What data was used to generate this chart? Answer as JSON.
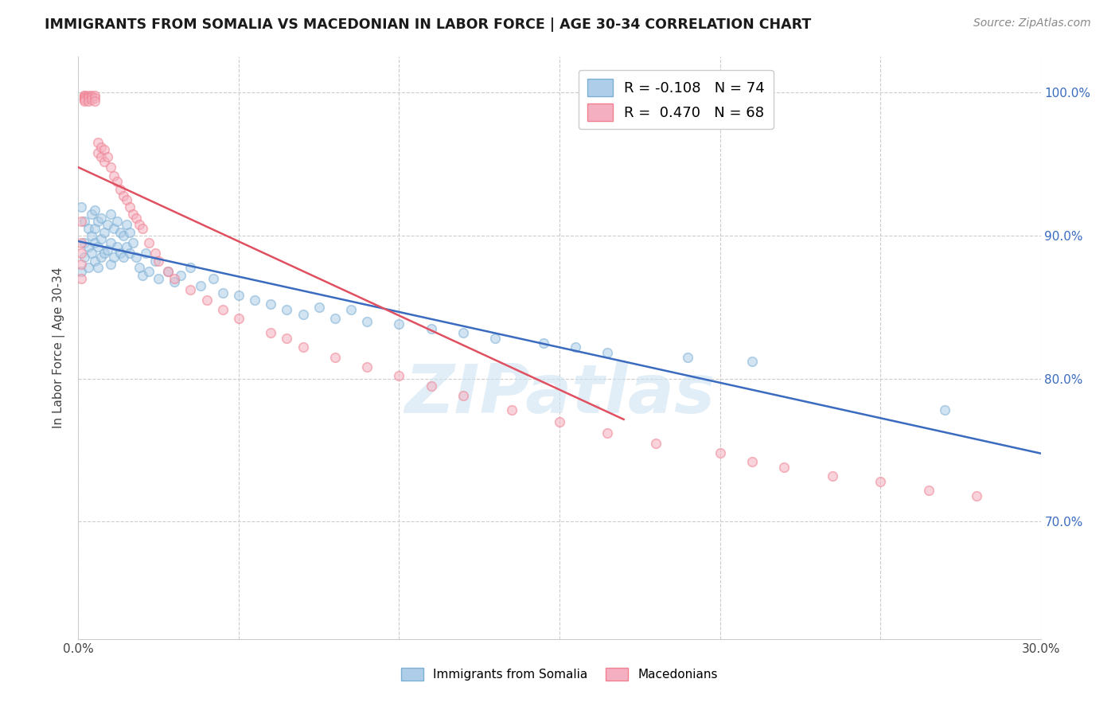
{
  "title": "IMMIGRANTS FROM SOMALIA VS MACEDONIAN IN LABOR FORCE | AGE 30-34 CORRELATION CHART",
  "source": "Source: ZipAtlas.com",
  "ylabel": "In Labor Force | Age 30-34",
  "watermark": "ZIPatlas",
  "somalia_color": "#7bafd4",
  "macedonian_color": "#f08090",
  "somalia_face_color": "#aecde8",
  "macedonian_face_color": "#f4b0c0",
  "trend_somalia_color": "#3a6bbf",
  "trend_macedonian_color": "#e05060",
  "xmin": 0.0,
  "xmax": 0.3,
  "ymin": 0.618,
  "ymax": 1.025,
  "xticks": [
    0.0,
    0.05,
    0.1,
    0.15,
    0.2,
    0.25,
    0.3
  ],
  "yticks": [
    0.7,
    0.8,
    0.9,
    1.0
  ],
  "background_color": "#ffffff",
  "grid_color": "#cccccc",
  "marker_size": 70,
  "marker_alpha": 0.55,
  "somalia_x": [
    0.001,
    0.001,
    0.002,
    0.002,
    0.002,
    0.003,
    0.003,
    0.003,
    0.004,
    0.004,
    0.004,
    0.005,
    0.005,
    0.005,
    0.005,
    0.006,
    0.006,
    0.006,
    0.007,
    0.007,
    0.007,
    0.008,
    0.008,
    0.009,
    0.009,
    0.01,
    0.01,
    0.01,
    0.011,
    0.011,
    0.012,
    0.012,
    0.013,
    0.013,
    0.014,
    0.014,
    0.015,
    0.015,
    0.016,
    0.016,
    0.017,
    0.018,
    0.019,
    0.02,
    0.021,
    0.022,
    0.024,
    0.025,
    0.028,
    0.03,
    0.032,
    0.035,
    0.038,
    0.042,
    0.045,
    0.05,
    0.055,
    0.06,
    0.065,
    0.07,
    0.075,
    0.08,
    0.085,
    0.09,
    0.1,
    0.11,
    0.12,
    0.13,
    0.145,
    0.155,
    0.165,
    0.19,
    0.21,
    0.27
  ],
  "somalia_y": [
    0.875,
    0.92,
    0.885,
    0.895,
    0.91,
    0.878,
    0.892,
    0.905,
    0.888,
    0.9,
    0.915,
    0.882,
    0.895,
    0.905,
    0.918,
    0.878,
    0.892,
    0.91,
    0.885,
    0.898,
    0.912,
    0.888,
    0.902,
    0.89,
    0.908,
    0.88,
    0.895,
    0.915,
    0.885,
    0.905,
    0.892,
    0.91,
    0.888,
    0.902,
    0.885,
    0.9,
    0.892,
    0.908,
    0.888,
    0.902,
    0.895,
    0.885,
    0.878,
    0.872,
    0.888,
    0.875,
    0.882,
    0.87,
    0.875,
    0.868,
    0.872,
    0.878,
    0.865,
    0.87,
    0.86,
    0.858,
    0.855,
    0.852,
    0.848,
    0.845,
    0.85,
    0.842,
    0.848,
    0.84,
    0.838,
    0.835,
    0.832,
    0.828,
    0.825,
    0.822,
    0.818,
    0.815,
    0.812,
    0.778
  ],
  "macedonian_x": [
    0.001,
    0.001,
    0.001,
    0.001,
    0.001,
    0.002,
    0.002,
    0.002,
    0.002,
    0.002,
    0.002,
    0.002,
    0.003,
    0.003,
    0.003,
    0.003,
    0.004,
    0.004,
    0.004,
    0.005,
    0.005,
    0.005,
    0.006,
    0.006,
    0.007,
    0.007,
    0.008,
    0.008,
    0.009,
    0.01,
    0.011,
    0.012,
    0.013,
    0.014,
    0.015,
    0.016,
    0.017,
    0.018,
    0.019,
    0.02,
    0.022,
    0.024,
    0.025,
    0.028,
    0.03,
    0.035,
    0.04,
    0.045,
    0.05,
    0.06,
    0.065,
    0.07,
    0.08,
    0.09,
    0.1,
    0.11,
    0.12,
    0.135,
    0.15,
    0.165,
    0.18,
    0.2,
    0.21,
    0.22,
    0.235,
    0.25,
    0.265,
    0.28
  ],
  "macedonian_y": [
    0.87,
    0.88,
    0.888,
    0.895,
    0.91,
    0.995,
    0.998,
    0.998,
    0.997,
    0.996,
    0.995,
    0.994,
    0.998,
    0.997,
    0.996,
    0.994,
    0.998,
    0.997,
    0.995,
    0.998,
    0.996,
    0.994,
    0.965,
    0.958,
    0.962,
    0.955,
    0.96,
    0.952,
    0.955,
    0.948,
    0.942,
    0.938,
    0.932,
    0.928,
    0.925,
    0.92,
    0.915,
    0.912,
    0.908,
    0.905,
    0.895,
    0.888,
    0.882,
    0.875,
    0.87,
    0.862,
    0.855,
    0.848,
    0.842,
    0.832,
    0.828,
    0.822,
    0.815,
    0.808,
    0.802,
    0.795,
    0.788,
    0.778,
    0.77,
    0.762,
    0.755,
    0.748,
    0.742,
    0.738,
    0.732,
    0.728,
    0.722,
    0.718
  ]
}
